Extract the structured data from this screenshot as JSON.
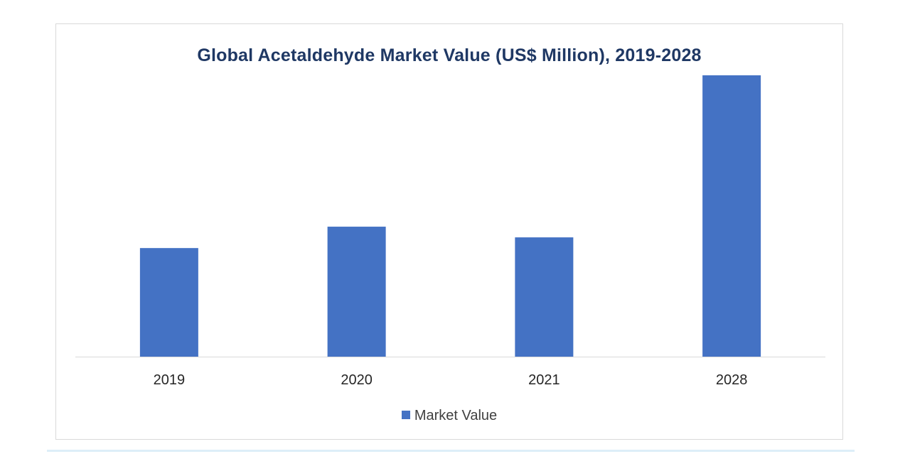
{
  "chart_data": {
    "type": "bar",
    "title": "Global Acetaldehyde Market Value (US$ Million), 2019-2028",
    "categories": [
      "2019",
      "2020",
      "2021",
      "2028"
    ],
    "series": [
      {
        "name": "Market Value",
        "values": [
          1320,
          1580,
          1450,
          3420
        ]
      }
    ],
    "ylim": [
      0,
      3800
    ],
    "grid": false,
    "legend": "bottom-center",
    "colors": {
      "bar": "#4472c4",
      "axis": "#d9d9d9",
      "tick_label": "#262626"
    }
  }
}
